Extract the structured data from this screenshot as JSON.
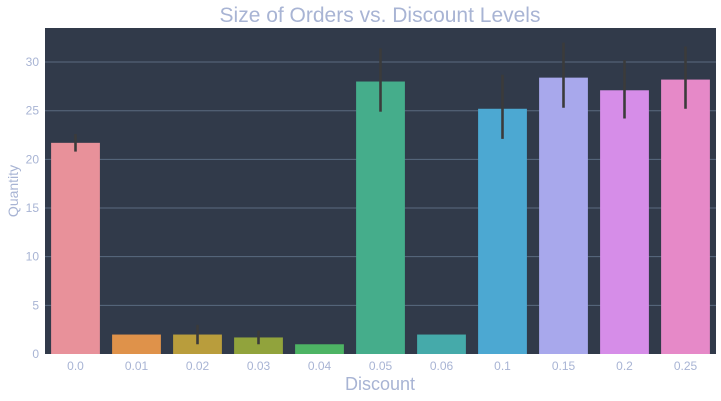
{
  "chart_data": {
    "type": "bar",
    "title": "Size of Orders vs. Discount Levels",
    "xlabel": "Discount",
    "ylabel": "Quantity",
    "categories": [
      "0.0",
      "0.01",
      "0.02",
      "0.03",
      "0.04",
      "0.05",
      "0.06",
      "0.1",
      "0.15",
      "0.2",
      "0.25"
    ],
    "values": [
      21.7,
      2.0,
      2.0,
      1.7,
      1.0,
      28.0,
      2.0,
      25.2,
      28.4,
      27.1,
      28.2
    ],
    "error_bars": [
      [
        20.8,
        22.6
      ],
      [
        2.0,
        2.0
      ],
      [
        1.0,
        3.0
      ],
      [
        1.0,
        2.4
      ],
      [
        1.0,
        1.0
      ],
      [
        24.9,
        31.4
      ],
      [
        2.0,
        2.0
      ],
      [
        22.1,
        28.7
      ],
      [
        25.3,
        32.0
      ],
      [
        24.2,
        30.2
      ],
      [
        25.2,
        31.6
      ]
    ],
    "colors": [
      "#e8919a",
      "#df924a",
      "#b99d3c",
      "#91a33c",
      "#4db464",
      "#45ad8b",
      "#45aaaa",
      "#4ca8d2",
      "#a8a8ec",
      "#d68de8",
      "#e689c8"
    ],
    "ylim": [
      0,
      33.5
    ],
    "yticks": [
      0,
      5,
      10,
      15,
      20,
      25,
      30
    ],
    "grid": true,
    "legend": "none",
    "theme": {
      "plot_background": "#313a4a",
      "grid_color": "#5a6b80",
      "text_color": "#a8b4d4",
      "error_bar_color": "#3b3b3b"
    }
  }
}
